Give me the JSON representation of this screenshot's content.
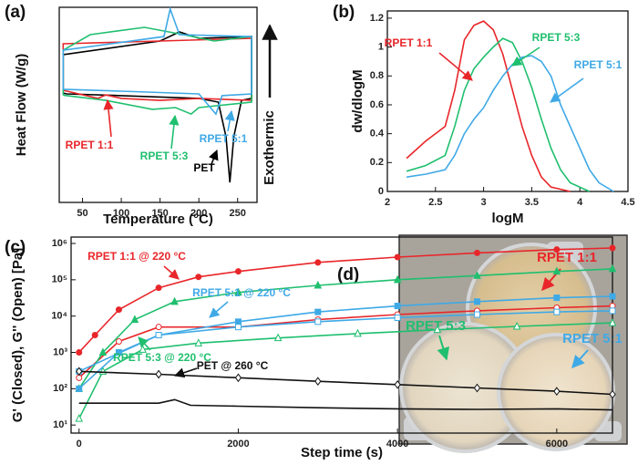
{
  "chart_data": [
    {
      "type": "line",
      "panel": "(a)",
      "xlabel": "Temperature (°C)",
      "ylabel": "Heat Flow (W/g)",
      "side_label": "Exothermic",
      "xlim": [
        20,
        275
      ],
      "xticks": [
        50,
        100,
        150,
        200,
        250
      ],
      "ylim": [
        0,
        10
      ],
      "annotations": [
        "RPET 1:1",
        "RPET 5:3",
        "RPET 5:1",
        "PET"
      ],
      "series": [
        {
          "color": "#000000",
          "x": [
            25,
            30,
            100,
            200,
            225,
            235,
            240,
            245,
            255,
            268,
            268,
            200,
            175,
            150,
            25,
            25
          ],
          "values": [
            5.6,
            5.56,
            5.47,
            5.33,
            5.14,
            3.36,
            1.03,
            3.36,
            5.23,
            5.33,
            8.5,
            8.41,
            8.74,
            8.27,
            7.57,
            5.6
          ]
        },
        {
          "color": "#e8262a",
          "x": [
            25,
            30,
            70,
            80,
            100,
            150,
            200,
            268,
            268,
            150,
            25,
            25
          ],
          "values": [
            5.75,
            5.7,
            5.33,
            5.51,
            5.33,
            5.23,
            5.33,
            5.23,
            8.41,
            8.27,
            8.13,
            5.75
          ]
        },
        {
          "color": "#1fbf6e",
          "x": [
            25,
            30,
            80,
            140,
            170,
            190,
            200,
            268,
            268,
            220,
            180,
            130,
            60,
            25,
            25
          ],
          "values": [
            5.5,
            5.47,
            5.23,
            4.77,
            4.86,
            4.53,
            4.86,
            5.14,
            8.5,
            8.27,
            8.6,
            8.97,
            8.6,
            7.8,
            5.5
          ]
        },
        {
          "color": "#3fa9e6",
          "x": [
            25,
            30,
            100,
            200,
            215,
            222,
            230,
            268,
            268,
            175,
            163,
            155,
            25,
            25
          ],
          "values": [
            5.8,
            5.79,
            5.7,
            5.56,
            4.86,
            4.53,
            5.47,
            5.56,
            8.5,
            8.6,
            9.91,
            8.5,
            7.8,
            5.8
          ]
        }
      ]
    },
    {
      "type": "line",
      "panel": "(b)",
      "xlabel": "logM",
      "ylabel": "dw/dlogM",
      "xlim": [
        2,
        4.5
      ],
      "xticks": [
        2,
        2.5,
        3,
        3.5,
        4,
        4.5
      ],
      "ylim": [
        0,
        1.25
      ],
      "yticks": [
        0,
        0.2,
        0.4,
        0.6,
        0.8,
        1,
        1.2
      ],
      "annotations": [
        "RPET 1:1",
        "RPET 5:3",
        "RPET 5:1"
      ],
      "series": [
        {
          "color": "#e8262a",
          "x": [
            2.2,
            2.4,
            2.5,
            2.6,
            2.7,
            2.8,
            2.9,
            3.0,
            3.1,
            3.2,
            3.3,
            3.4,
            3.5,
            3.6,
            3.7,
            3.9
          ],
          "values": [
            0.23,
            0.35,
            0.4,
            0.45,
            0.7,
            1.05,
            1.15,
            1.18,
            1.12,
            0.95,
            0.7,
            0.45,
            0.25,
            0.1,
            0.03,
            0
          ]
        },
        {
          "color": "#1fbf6e",
          "x": [
            2.2,
            2.4,
            2.6,
            2.7,
            2.8,
            2.9,
            3.0,
            3.1,
            3.2,
            3.3,
            3.4,
            3.5,
            3.6,
            3.7,
            3.8,
            3.9,
            4.1
          ],
          "values": [
            0.14,
            0.18,
            0.25,
            0.45,
            0.7,
            0.85,
            0.93,
            1.0,
            1.06,
            1.03,
            0.9,
            0.72,
            0.5,
            0.3,
            0.15,
            0.06,
            0
          ]
        },
        {
          "color": "#3fa9e6",
          "x": [
            2.2,
            2.4,
            2.6,
            2.7,
            2.8,
            2.9,
            3.0,
            3.1,
            3.2,
            3.3,
            3.4,
            3.5,
            3.6,
            3.7,
            3.8,
            3.9,
            4.0,
            4.1,
            4.2,
            4.35
          ],
          "values": [
            0.1,
            0.12,
            0.15,
            0.25,
            0.4,
            0.5,
            0.58,
            0.7,
            0.8,
            0.88,
            0.93,
            0.94,
            0.9,
            0.8,
            0.6,
            0.45,
            0.3,
            0.15,
            0.06,
            0
          ]
        }
      ]
    },
    {
      "type": "line",
      "panel": "(c)",
      "xlabel": "Step time (s)",
      "ylabel": "G' (Closed), G'' (Open) [Pa]",
      "ylog": true,
      "xlim": [
        -100,
        6700
      ],
      "xticks": [
        0,
        2000,
        4000,
        6000
      ],
      "ylim": [
        6,
        1500000
      ],
      "yticks": [
        {
          "value": 10,
          "label": "10¹"
        },
        {
          "value": 100,
          "label": "10²"
        },
        {
          "value": 1000,
          "label": "10³"
        },
        {
          "value": 10000,
          "label": "10⁴"
        },
        {
          "value": 100000,
          "label": "10⁵"
        },
        {
          "value": 1000000,
          "label": "10⁶"
        }
      ],
      "annotations": [
        "RPET 1:1 @ 220 °C",
        "RPET 5:1 @ 220 °C",
        "RPET 5:3 @ 220 °C",
        "PET @ 260 °C"
      ],
      "series": [
        {
          "color": "#e8262a",
          "marker": "circle",
          "filled": true,
          "x": [
            0,
            200,
            500,
            1000,
            1500,
            2000,
            3000,
            4000,
            5000,
            6000,
            6700
          ],
          "values": [
            1000,
            3000,
            15000,
            60000,
            120000,
            170000,
            300000,
            420000,
            550000,
            680000,
            750000
          ]
        },
        {
          "color": "#e8262a",
          "marker": "circle",
          "filled": false,
          "x": [
            0,
            500,
            1000,
            2000,
            3000,
            4000,
            5000,
            6000,
            6700
          ],
          "values": [
            200,
            2000,
            5000,
            5000,
            8000,
            11000,
            14000,
            17000,
            19000
          ]
        },
        {
          "color": "#1fbf6e",
          "marker": "triangle",
          "filled": true,
          "x": [
            0,
            300,
            700,
            1200,
            2000,
            3000,
            4000,
            5000,
            6000,
            6700
          ],
          "values": [
            100,
            1000,
            8000,
            25000,
            45000,
            70000,
            100000,
            130000,
            170000,
            200000
          ]
        },
        {
          "color": "#1fbf6e",
          "marker": "triangle",
          "filled": false,
          "x": [
            0,
            300,
            800,
            1500,
            2500,
            3500,
            4500,
            5500,
            6700
          ],
          "values": [
            15,
            300,
            1200,
            1800,
            2500,
            3300,
            4200,
            5200,
            6500
          ]
        },
        {
          "color": "#3fa9e6",
          "marker": "square",
          "filled": true,
          "x": [
            0,
            500,
            1000,
            2000,
            3000,
            4000,
            5000,
            6000,
            6700
          ],
          "values": [
            100,
            1000,
            3000,
            7000,
            13000,
            19000,
            25000,
            32000,
            35000
          ]
        },
        {
          "color": "#3fa9e6",
          "marker": "square",
          "filled": false,
          "x": [
            0,
            1000,
            2000,
            3000,
            4000,
            5000,
            6000,
            6700
          ],
          "values": [
            300,
            3000,
            5000,
            7000,
            9000,
            11000,
            13000,
            14000
          ]
        },
        {
          "color": "#111111",
          "marker": "diamond",
          "filled": false,
          "x": [
            0,
            1000,
            2000,
            3000,
            4000,
            5000,
            6000,
            6700
          ],
          "values": [
            300,
            250,
            200,
            160,
            130,
            105,
            85,
            70
          ]
        },
        {
          "color": "#111111",
          "marker": "none",
          "filled": false,
          "x": [
            0,
            1000,
            1200,
            1400,
            2000,
            3000,
            4000,
            5000,
            6000,
            6700
          ],
          "values": [
            40,
            40,
            50,
            35,
            33,
            30,
            28,
            27,
            28,
            26
          ]
        }
      ]
    }
  ],
  "photo": {
    "panel": "(d)",
    "labels": [
      "RPET 1:1",
      "RPET 5:3",
      "RPET 5:1"
    ]
  }
}
